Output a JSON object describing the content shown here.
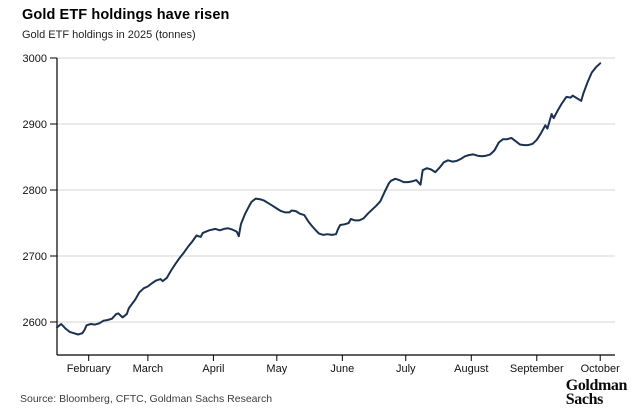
{
  "header": {
    "title": "Gold ETF holdings have risen",
    "subtitle": "Gold ETF holdings in 2025 (tonnes)"
  },
  "footer": {
    "source": "Source: Bloomberg, CFTC, Goldman Sachs Research",
    "logo_line1": "Goldman",
    "logo_line2": "Sachs"
  },
  "colors": {
    "line": "#1a3150",
    "grid": "#d6d6d6",
    "axis": "#000000",
    "tick_text": "#111111",
    "background": "#ffffff"
  },
  "chart_data": {
    "type": "line",
    "title": "Gold ETF holdings have risen",
    "subtitle": "Gold ETF holdings in 2025 (tonnes)",
    "xlabel": "",
    "ylabel": "tonnes",
    "x_unit": "day-of-year 2025",
    "xlim": [
      17,
      281
    ],
    "ylim": [
      2550,
      3000
    ],
    "grid": "horizontal",
    "legend": "none",
    "y_ticks": [
      2600,
      2700,
      2800,
      2900,
      3000
    ],
    "x_ticks": [
      {
        "day": 32,
        "label": "February"
      },
      {
        "day": 60,
        "label": "March"
      },
      {
        "day": 91,
        "label": "April"
      },
      {
        "day": 121,
        "label": "May"
      },
      {
        "day": 152,
        "label": "June"
      },
      {
        "day": 182,
        "label": "July"
      },
      {
        "day": 213,
        "label": "August"
      },
      {
        "day": 244,
        "label": "September"
      },
      {
        "day": 274,
        "label": "October"
      }
    ],
    "series": [
      {
        "name": "Gold ETF holdings (tonnes)",
        "points": [
          [
            17,
            2592
          ],
          [
            19,
            2597
          ],
          [
            21,
            2590
          ],
          [
            23,
            2585
          ],
          [
            25,
            2583
          ],
          [
            27,
            2581
          ],
          [
            29,
            2583
          ],
          [
            30,
            2588
          ],
          [
            31,
            2595
          ],
          [
            33,
            2597
          ],
          [
            35,
            2596
          ],
          [
            37,
            2598
          ],
          [
            39,
            2602
          ],
          [
            41,
            2603
          ],
          [
            43,
            2605
          ],
          [
            45,
            2612
          ],
          [
            46,
            2613
          ],
          [
            48,
            2607
          ],
          [
            50,
            2612
          ],
          [
            51,
            2621
          ],
          [
            54,
            2634
          ],
          [
            56,
            2645
          ],
          [
            58,
            2651
          ],
          [
            60,
            2654
          ],
          [
            62,
            2659
          ],
          [
            64,
            2663
          ],
          [
            66,
            2665
          ],
          [
            67,
            2662
          ],
          [
            69,
            2667
          ],
          [
            71,
            2678
          ],
          [
            73,
            2688
          ],
          [
            75,
            2697
          ],
          [
            77,
            2705
          ],
          [
            79,
            2714
          ],
          [
            81,
            2722
          ],
          [
            83,
            2731
          ],
          [
            85,
            2729
          ],
          [
            86,
            2735
          ],
          [
            89,
            2739
          ],
          [
            92,
            2741
          ],
          [
            94,
            2739
          ],
          [
            96,
            2741
          ],
          [
            98,
            2742
          ],
          [
            100,
            2740
          ],
          [
            102,
            2737
          ],
          [
            103,
            2730
          ],
          [
            104,
            2748
          ],
          [
            106,
            2764
          ],
          [
            108,
            2776
          ],
          [
            109,
            2782
          ],
          [
            111,
            2787
          ],
          [
            113,
            2786
          ],
          [
            115,
            2784
          ],
          [
            117,
            2780
          ],
          [
            119,
            2776
          ],
          [
            121,
            2772
          ],
          [
            123,
            2768
          ],
          [
            125,
            2766
          ],
          [
            127,
            2766
          ],
          [
            128,
            2769
          ],
          [
            130,
            2768
          ],
          [
            132,
            2764
          ],
          [
            134,
            2762
          ],
          [
            136,
            2752
          ],
          [
            138,
            2744
          ],
          [
            140,
            2737
          ],
          [
            141,
            2734
          ],
          [
            143,
            2732
          ],
          [
            145,
            2733
          ],
          [
            147,
            2732
          ],
          [
            149,
            2733
          ],
          [
            150,
            2741
          ],
          [
            151,
            2747
          ],
          [
            153,
            2748
          ],
          [
            155,
            2750
          ],
          [
            156,
            2756
          ],
          [
            158,
            2754
          ],
          [
            160,
            2754
          ],
          [
            162,
            2757
          ],
          [
            164,
            2764
          ],
          [
            166,
            2770
          ],
          [
            168,
            2776
          ],
          [
            170,
            2783
          ],
          [
            172,
            2797
          ],
          [
            174,
            2810
          ],
          [
            175,
            2814
          ],
          [
            177,
            2817
          ],
          [
            179,
            2815
          ],
          [
            181,
            2812
          ],
          [
            183,
            2812
          ],
          [
            185,
            2813
          ],
          [
            187,
            2815
          ],
          [
            189,
            2808
          ],
          [
            190,
            2830
          ],
          [
            192,
            2833
          ],
          [
            194,
            2831
          ],
          [
            196,
            2827
          ],
          [
            198,
            2834
          ],
          [
            200,
            2842
          ],
          [
            202,
            2845
          ],
          [
            204,
            2843
          ],
          [
            206,
            2844
          ],
          [
            208,
            2847
          ],
          [
            210,
            2851
          ],
          [
            212,
            2853
          ],
          [
            214,
            2854
          ],
          [
            216,
            2852
          ],
          [
            218,
            2851
          ],
          [
            220,
            2852
          ],
          [
            222,
            2854
          ],
          [
            224,
            2860
          ],
          [
            226,
            2872
          ],
          [
            228,
            2877
          ],
          [
            230,
            2877
          ],
          [
            232,
            2879
          ],
          [
            234,
            2874
          ],
          [
            236,
            2869
          ],
          [
            238,
            2868
          ],
          [
            240,
            2868
          ],
          [
            242,
            2870
          ],
          [
            244,
            2876
          ],
          [
            246,
            2886
          ],
          [
            248,
            2898
          ],
          [
            249,
            2893
          ],
          [
            251,
            2915
          ],
          [
            252,
            2909
          ],
          [
            254,
            2921
          ],
          [
            256,
            2932
          ],
          [
            258,
            2941
          ],
          [
            260,
            2940
          ],
          [
            261,
            2943
          ],
          [
            263,
            2939
          ],
          [
            265,
            2935
          ],
          [
            266,
            2946
          ],
          [
            268,
            2963
          ],
          [
            270,
            2978
          ],
          [
            272,
            2986
          ],
          [
            274,
            2992
          ]
        ]
      }
    ]
  }
}
